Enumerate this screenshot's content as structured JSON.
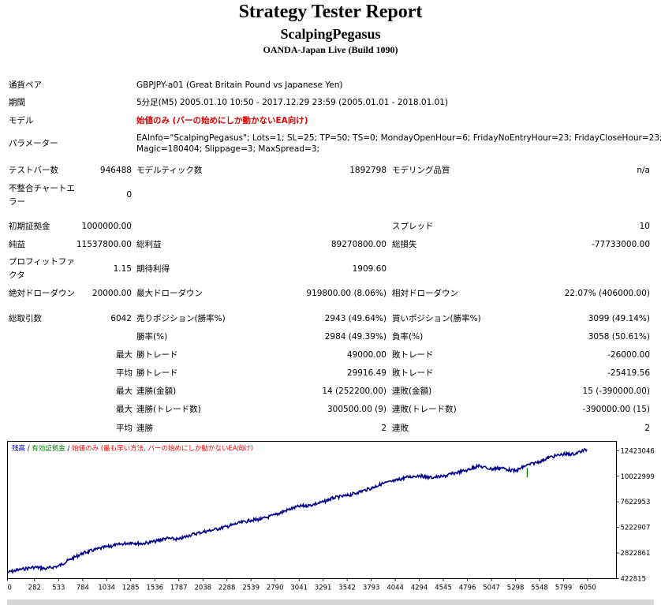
{
  "header": {
    "title": "Strategy Tester Report",
    "ea_name": "ScalpingPegasus",
    "server": "OANDA-Japan Live (Build 1090)"
  },
  "info": {
    "symbol_label": "通貨ペア",
    "symbol_value": "GBPJPY-a01 (Great Britain Pound vs Japanese Yen)",
    "period_label": "期間",
    "period_value": "5分足(M5) 2005.01.10 10:50 - 2017.12.29 23:59 (2005.01.01 - 2018.01.01)",
    "model_label": "モデル",
    "model_value": "始値のみ (バーの始めにしか動かないEA向け)",
    "params_label": "パラメーター",
    "params_line1": "EAInfo=\"ScalpingPegasus\"; Lots=1; SL=25; TP=50; TS=0; MondayOpenHour=6; FridayNoEntryHour=23; FridayCloseHour=23;",
    "params_line2": "Magic=180404; Slippage=3; MaxSpread=3;"
  },
  "stats": {
    "bars_label": "テストバー数",
    "bars_value": "946488",
    "ticks_label": "モデルティック数",
    "ticks_value": "1892798",
    "quality_label": "モデリング品質",
    "quality_value": "n/a",
    "mismatch_label_1": "不整合チャートエ",
    "mismatch_label_2": "ラー",
    "mismatch_value": "0",
    "deposit_label": "初期証拠金",
    "deposit_value": "1000000.00",
    "spread_label": "スプレッド",
    "spread_value": "10",
    "net_label": "純益",
    "net_value": "11537800.00",
    "gross_profit_label": "総利益",
    "gross_profit_value": "89270800.00",
    "gross_loss_label": "総損失",
    "gross_loss_value": "-77733000.00",
    "pf_label_1": "プロフィットファ",
    "pf_label_2": "クタ",
    "pf_value": "1.15",
    "payoff_label": "期待利得",
    "payoff_value": "1909.60",
    "abs_dd_label": "絶対ドローダウン",
    "abs_dd_value": "20000.00",
    "max_dd_label": "最大ドローダウン",
    "max_dd_value": "919800.00 (8.06%)",
    "rel_dd_label": "相対ドローダウン",
    "rel_dd_value": "22.07% (406000.00)",
    "trades_label": "総取引数",
    "trades_value": "6042",
    "short_label": "売りポジション(勝率%)",
    "short_value": "2943 (49.64%)",
    "long_label": "買いポジション(勝率%)",
    "long_value": "3099 (49.14%)",
    "win_label": "勝率(%)",
    "win_value": "2984 (49.39%)",
    "loss_label": "負率(%)",
    "loss_value": "3058 (50.61%)",
    "max_word": "最大",
    "avg_word": "平均",
    "largest_win_label": "勝トレード",
    "largest_win_value": "49000.00",
    "largest_loss_label": "敗トレード",
    "largest_loss_value": "-26000.00",
    "avg_win_label": "勝トレード",
    "avg_win_value": "29916.49",
    "avg_loss_label": "敗トレード",
    "avg_loss_value": "-25419.56",
    "max_cons_wins_label": "連勝(金額)",
    "max_cons_wins_value": "14 (252200.00)",
    "max_cons_losses_label": "連敗(金額)",
    "max_cons_losses_value": "15 (-390000.00)",
    "max_cons_profit_label": "連勝(トレード数)",
    "max_cons_profit_value": "300500.00 (9)",
    "max_cons_loss_label": "連敗(トレード数)",
    "max_cons_loss_value": "-390000.00 (15)",
    "avg_cons_wins_label": "連勝",
    "avg_cons_wins_value": "2",
    "avg_cons_losses_label": "連敗",
    "avg_cons_losses_value": "2"
  },
  "chart_legend": {
    "balance": "残高",
    "sep1": " / ",
    "equity": "有効証拠金",
    "sep2": " / ",
    "model": "始値のみ (最も早い方法, バーの始めにしか動かないEA向け)"
  },
  "colors": {
    "balance": "#00008b",
    "equity": "#008000",
    "model_text": "#ff0000",
    "legend_balance_text": "#0000b0"
  },
  "chart_data": {
    "type": "line",
    "x_ticks": [
      "0",
      "282",
      "533",
      "784",
      "1034",
      "1285",
      "1536",
      "1787",
      "2038",
      "2288",
      "2539",
      "2790",
      "3041",
      "3291",
      "3542",
      "3793",
      "4044",
      "4294",
      "4545",
      "4796",
      "5047",
      "5298",
      "5548",
      "5799",
      "6050"
    ],
    "y_ticks": [
      "422815",
      "2822861",
      "5222907",
      "7622953",
      "10022999",
      "12423046"
    ],
    "xlim": [
      0,
      6350
    ],
    "ylim": [
      422815,
      13300000
    ],
    "series": [
      {
        "name": "残高",
        "x": [
          0,
          120,
          282,
          400,
          533,
          650,
          784,
          900,
          1034,
          1150,
          1285,
          1400,
          1536,
          1650,
          1787,
          1900,
          2038,
          2150,
          2288,
          2400,
          2539,
          2650,
          2790,
          2900,
          3041,
          3150,
          3291,
          3400,
          3542,
          3650,
          3793,
          3900,
          4044,
          4150,
          4294,
          4400,
          4545,
          4650,
          4796,
          4900,
          5047,
          5150,
          5298,
          5400,
          5548,
          5650,
          5799,
          5900,
          6042
        ],
        "y": [
          1000000,
          1250000,
          1500000,
          1350000,
          1600000,
          2200000,
          2800000,
          3100000,
          3400000,
          3600000,
          3800000,
          3700000,
          3900000,
          4200000,
          4100000,
          4500000,
          4800000,
          5000000,
          5300000,
          5600000,
          5900000,
          6000000,
          6400000,
          6800000,
          7200000,
          7300000,
          7600000,
          8000000,
          8200000,
          8500000,
          8900000,
          9300000,
          9600000,
          9900000,
          10100000,
          9900000,
          10000000,
          10300000,
          10600000,
          11000000,
          10700000,
          10800000,
          10500000,
          11000000,
          11400000,
          11800000,
          12100000,
          12100000,
          12537800
        ]
      }
    ],
    "equity_spike": {
      "x": 5420,
      "y": 10350000
    }
  }
}
